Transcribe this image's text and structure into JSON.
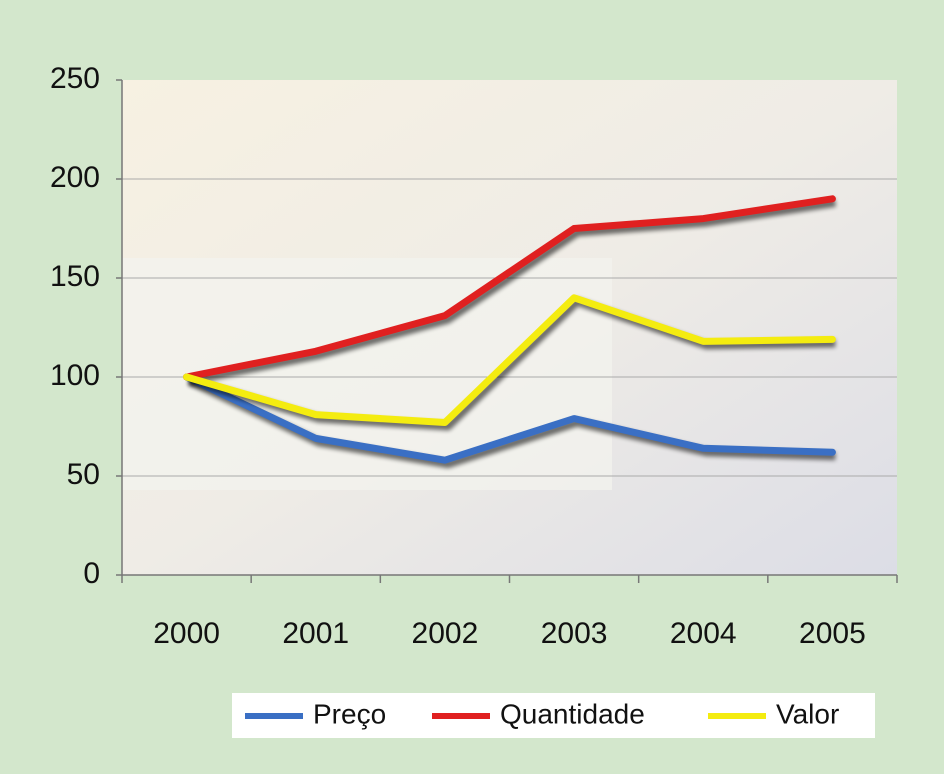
{
  "chart_data": {
    "type": "line",
    "categories": [
      "2000",
      "2001",
      "2002",
      "2003",
      "2004",
      "2005"
    ],
    "series": [
      {
        "name": "Preço",
        "color": "#3a6fc4",
        "values": [
          100,
          69,
          58,
          79,
          64,
          62
        ]
      },
      {
        "name": "Quantidade",
        "color": "#e02020",
        "values": [
          100,
          113,
          131,
          175,
          180,
          190
        ]
      },
      {
        "name": "Valor",
        "color": "#f4ec10",
        "values": [
          100,
          81,
          77,
          140,
          118,
          119
        ]
      }
    ],
    "ylim": [
      0,
      250
    ],
    "yticks": [
      0,
      50,
      100,
      150,
      200,
      250
    ],
    "grid": true,
    "legend": "bottom"
  }
}
